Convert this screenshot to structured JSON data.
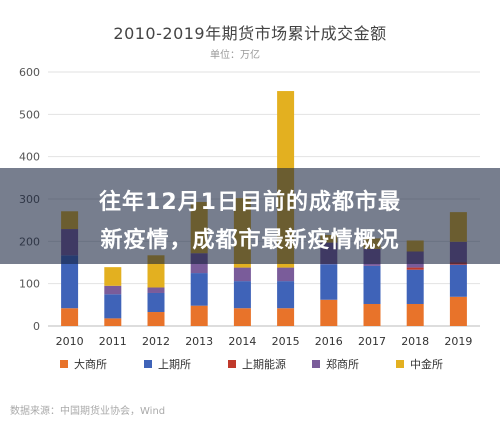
{
  "chart_data": {
    "type": "bar",
    "stacked": true,
    "title": "2010-2019年期货市场累计成交金额",
    "unit_label": "单位：万亿",
    "categories": [
      "2010",
      "2011",
      "2012",
      "2013",
      "2014",
      "2015",
      "2016",
      "2017",
      "2018",
      "2019"
    ],
    "ylim": [
      0,
      600
    ],
    "yticks": [
      0,
      100,
      200,
      300,
      400,
      500,
      600
    ],
    "grid": true,
    "legend_position": "bottom",
    "series": [
      {
        "name": "大商所",
        "color": "#e8732a",
        "values": [
          42,
          18,
          33,
          48,
          42,
          42,
          62,
          52,
          52,
          69
        ]
      },
      {
        "name": "上期所",
        "color": "#3f63b8",
        "values": [
          125,
          57,
          45,
          77,
          64,
          64,
          84,
          90,
          81,
          76
        ]
      },
      {
        "name": "上期能源",
        "color": "#c0392b",
        "values": [
          0,
          0,
          0,
          0,
          0,
          0,
          0,
          0,
          5,
          5
        ]
      },
      {
        "name": "郑商所",
        "color": "#7a5c9a",
        "values": [
          62,
          20,
          13,
          47,
          32,
          32,
          51,
          40,
          38,
          49
        ]
      },
      {
        "name": "中金所",
        "color": "#e3b020",
        "values": [
          42,
          44,
          76,
          121,
          164,
          417,
          18,
          25,
          26,
          70
        ]
      }
    ]
  },
  "overlay": {
    "line1": "往年12月1日目前的成都市最",
    "line2": "新疫情，成都市最新疫情概况"
  },
  "source": "数据来源：中国期货业协会，Wind"
}
